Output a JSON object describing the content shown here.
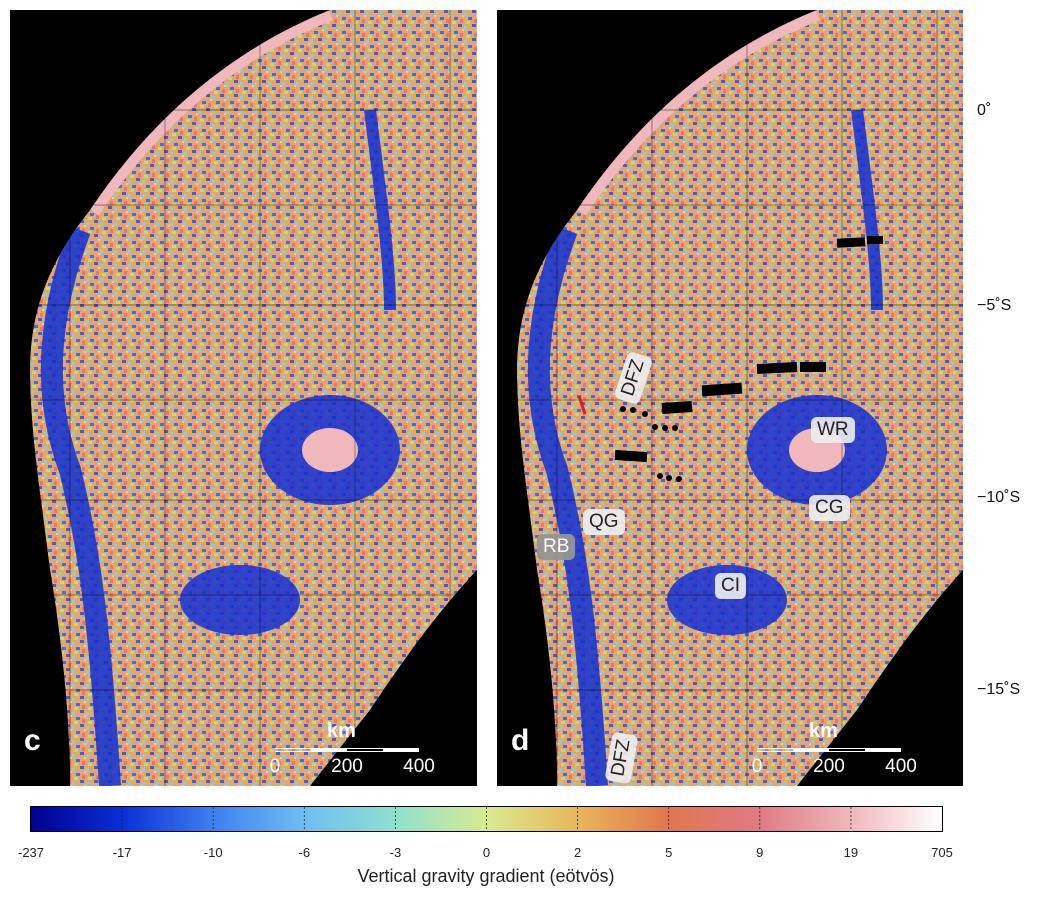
{
  "panels": {
    "c": {
      "letter": "c"
    },
    "d": {
      "letter": "d"
    }
  },
  "scalebar": {
    "unit": "km",
    "ticks": [
      "0",
      "200",
      "400"
    ]
  },
  "latitude_labels": [
    "0˚",
    "−5˚S",
    "−10˚S",
    "−15˚S"
  ],
  "feature_labels": {
    "dfz_upper": "DFZ",
    "dfz_lower": "DFZ",
    "wr": "WR",
    "cg": "CG",
    "qg": "QG",
    "rb": "RB",
    "ci": "CI"
  },
  "colorbar": {
    "ticks": [
      "-237",
      "-17",
      "-10",
      "-6",
      "-3",
      "0",
      "2",
      "5",
      "9",
      "19",
      "705"
    ],
    "caption": "Vertical gravity gradient (eötvös)",
    "colors": [
      "#00008f",
      "#0a2fd6",
      "#3f7ff0",
      "#6fbdf1",
      "#8fe0d0",
      "#d8ea8f",
      "#e9b65a",
      "#e0764f",
      "#e07a85",
      "#f0b8bc",
      "#ffffff"
    ]
  }
}
